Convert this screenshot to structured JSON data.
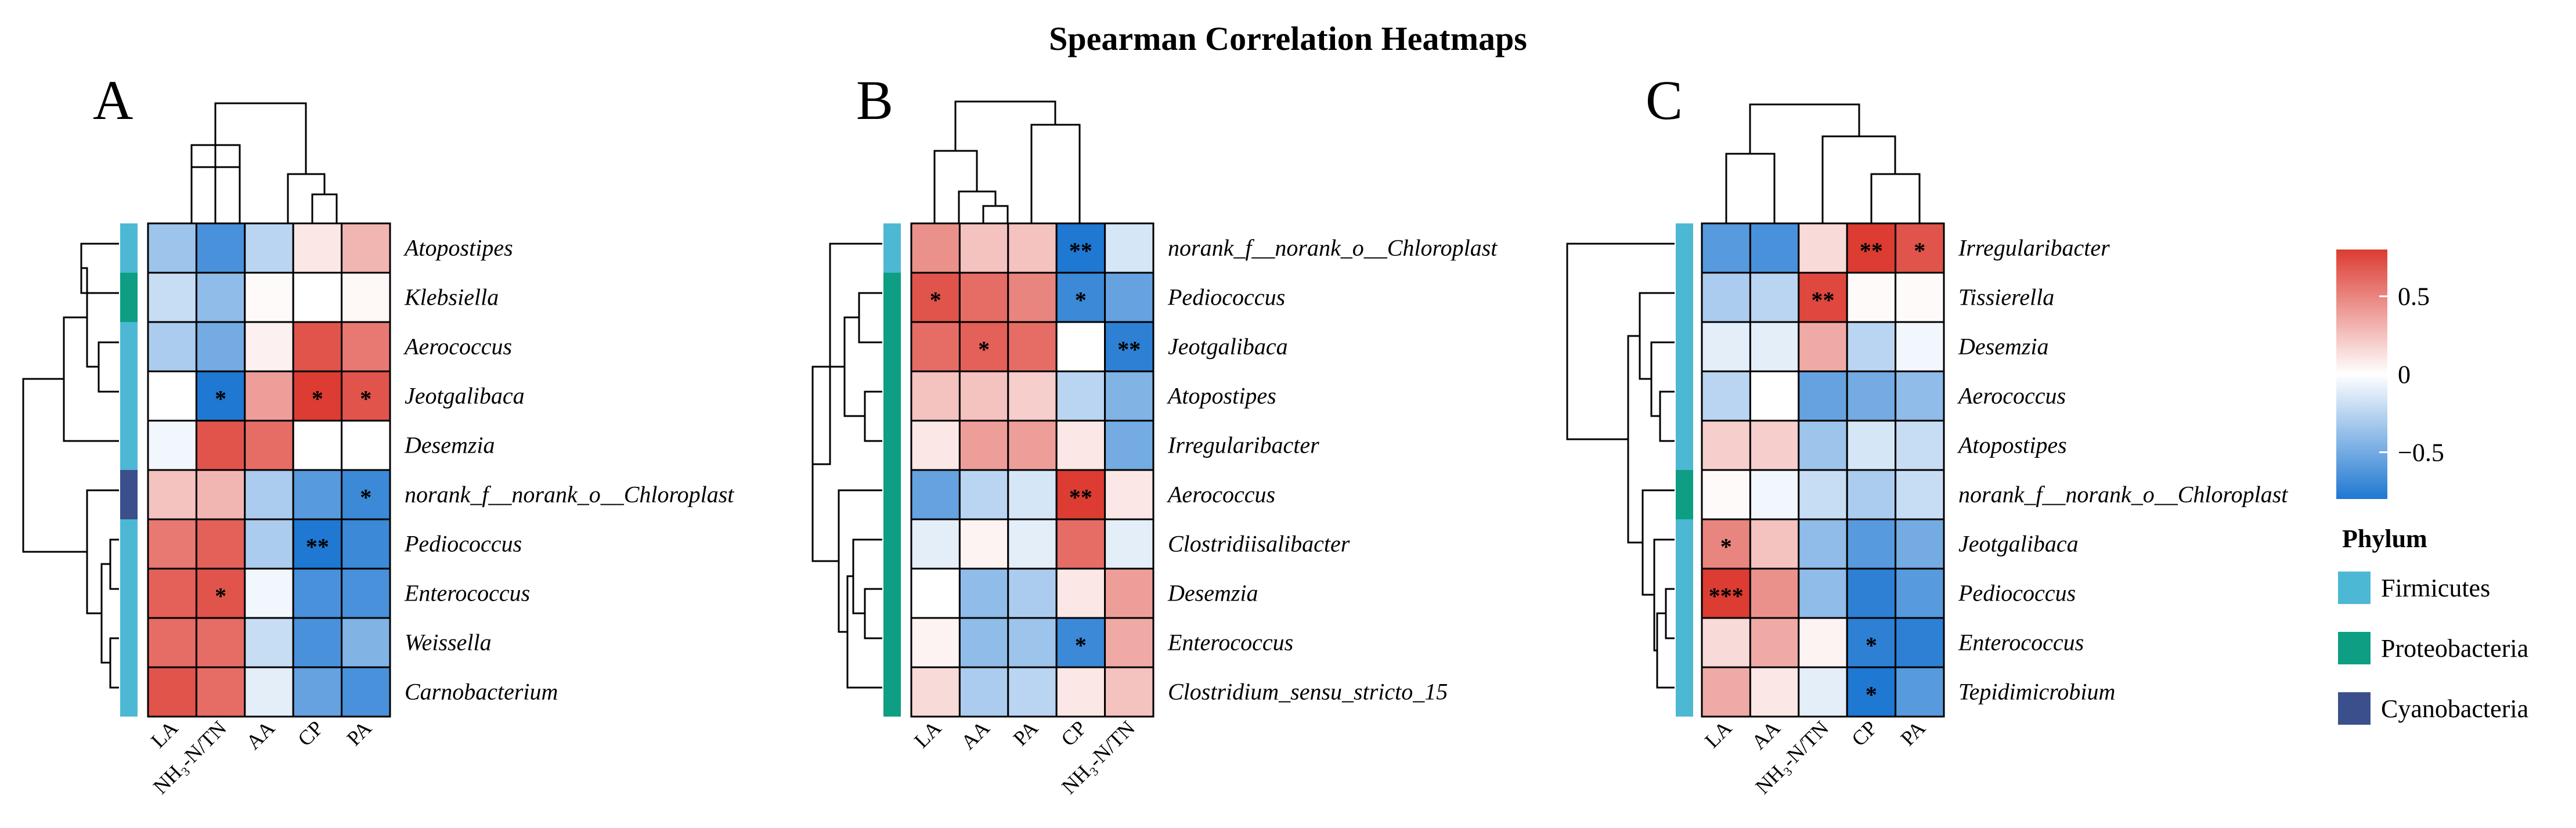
{
  "chart_data": {
    "type": "heatmap",
    "title": "Spearman Correlation Heatmaps",
    "color_scale": {
      "min": -0.8,
      "max": 0.8,
      "ticks": [
        0.5,
        0,
        -0.5
      ],
      "tick_labels": [
        "0.5",
        "0",
        "−0.5"
      ],
      "low_color": "#1f78d1",
      "mid_color": "#ffffff",
      "high_color": "#dc3c32"
    },
    "phylum_legend": {
      "title": "Phylum",
      "items": [
        {
          "name": "Firmicutes",
          "color": "#4db8d4"
        },
        {
          "name": "Proteobacteria",
          "color": "#0d9e83"
        },
        {
          "name": "Cyanobacteria",
          "color": "#3b4f8c"
        }
      ]
    },
    "panels": [
      {
        "label": "A",
        "columns": [
          "LA",
          "NH₃-N/TN",
          "AA",
          "CP",
          "PA"
        ],
        "rows": [
          {
            "name": "Atopostipes",
            "phylum": "Firmicutes",
            "values": [
              -0.35,
              -0.65,
              -0.25,
              0.1,
              0.3
            ],
            "sig": [
              "",
              "",
              "",
              "",
              ""
            ]
          },
          {
            "name": "Klebsiella",
            "phylum": "Proteobacteria",
            "values": [
              -0.2,
              -0.4,
              0.02,
              0.0,
              0.03
            ],
            "sig": [
              "",
              "",
              "",
              "",
              ""
            ]
          },
          {
            "name": "Aerococcus",
            "phylum": "Firmicutes",
            "values": [
              -0.3,
              -0.5,
              0.06,
              0.7,
              0.55
            ],
            "sig": [
              "",
              "",
              "",
              "",
              ""
            ]
          },
          {
            "name": "Jeotgalibaca",
            "phylum": "Firmicutes",
            "values": [
              0.0,
              -0.8,
              0.4,
              0.8,
              0.7
            ],
            "sig": [
              "",
              "*",
              "",
              "*",
              "*"
            ]
          },
          {
            "name": "Desemzia",
            "phylum": "Firmicutes",
            "values": [
              -0.05,
              0.7,
              0.6,
              0.0,
              0.0
            ],
            "sig": [
              "",
              "",
              "",
              "",
              ""
            ]
          },
          {
            "name": "norank_f__norank_o__Chloroplast",
            "phylum": "Cyanobacteria",
            "values": [
              0.25,
              0.3,
              -0.3,
              -0.6,
              -0.7
            ],
            "sig": [
              "",
              "",
              "",
              "",
              "*"
            ]
          },
          {
            "name": "Pediococcus",
            "phylum": "Firmicutes",
            "values": [
              0.55,
              0.65,
              -0.3,
              -0.85,
              -0.7
            ],
            "sig": [
              "",
              "",
              "",
              "**",
              ""
            ]
          },
          {
            "name": "Enterococcus",
            "phylum": "Firmicutes",
            "values": [
              0.65,
              0.7,
              -0.05,
              -0.65,
              -0.65
            ],
            "sig": [
              "",
              "*",
              "",
              "",
              ""
            ]
          },
          {
            "name": "Weissella",
            "phylum": "Firmicutes",
            "values": [
              0.6,
              0.6,
              -0.2,
              -0.65,
              -0.45
            ],
            "sig": [
              "",
              "",
              "",
              "",
              ""
            ]
          },
          {
            "name": "Carnobacterium",
            "phylum": "Firmicutes",
            "values": [
              0.7,
              0.6,
              -0.1,
              -0.55,
              -0.65
            ],
            "sig": [
              "",
              "",
              "",
              "",
              ""
            ]
          }
        ]
      },
      {
        "label": "B",
        "columns": [
          "LA",
          "AA",
          "PA",
          "CP",
          "NH₃-N/TN"
        ],
        "rows": [
          {
            "name": "norank_f__norank_o__Chloroplast",
            "phylum": "Firmicutes",
            "values": [
              0.45,
              0.25,
              0.25,
              -0.8,
              -0.15
            ],
            "sig": [
              "",
              "",
              "",
              "**",
              ""
            ]
          },
          {
            "name": "Pediococcus",
            "phylum": "Proteobacteria",
            "values": [
              0.7,
              0.6,
              0.5,
              -0.7,
              -0.55
            ],
            "sig": [
              "*",
              "",
              "",
              "*",
              ""
            ]
          },
          {
            "name": "Jeotgalibaca",
            "phylum": "Proteobacteria",
            "values": [
              0.6,
              0.65,
              0.6,
              0.0,
              -0.75
            ],
            "sig": [
              "",
              "*",
              "",
              "",
              "**"
            ]
          },
          {
            "name": "Atopostipes",
            "phylum": "Proteobacteria",
            "values": [
              0.25,
              0.25,
              0.2,
              -0.25,
              -0.45
            ],
            "sig": [
              "",
              "",
              "",
              "",
              ""
            ]
          },
          {
            "name": "Irregularibacter",
            "phylum": "Proteobacteria",
            "values": [
              0.1,
              0.4,
              0.4,
              0.1,
              -0.5
            ],
            "sig": [
              "",
              "",
              "",
              "",
              ""
            ]
          },
          {
            "name": "Aerococcus",
            "phylum": "Proteobacteria",
            "values": [
              -0.55,
              -0.25,
              -0.15,
              0.8,
              0.1
            ],
            "sig": [
              "",
              "",
              "",
              "**",
              ""
            ]
          },
          {
            "name": "Clostridiisalibacter",
            "phylum": "Proteobacteria",
            "values": [
              -0.1,
              0.05,
              -0.1,
              0.6,
              -0.1
            ],
            "sig": [
              "",
              "",
              "",
              "",
              ""
            ]
          },
          {
            "name": "Desemzia",
            "phylum": "Proteobacteria",
            "values": [
              0.0,
              -0.4,
              -0.3,
              0.1,
              0.4
            ],
            "sig": [
              "",
              "",
              "",
              "",
              ""
            ]
          },
          {
            "name": "Enterococcus",
            "phylum": "Proteobacteria",
            "values": [
              0.05,
              -0.4,
              -0.35,
              -0.7,
              0.35
            ],
            "sig": [
              "",
              "",
              "",
              "*",
              ""
            ]
          },
          {
            "name": "Clostridium_sensu_stricto_15",
            "phylum": "Proteobacteria",
            "values": [
              0.15,
              -0.3,
              -0.25,
              0.1,
              0.25
            ],
            "sig": [
              "",
              "",
              "",
              "",
              ""
            ]
          }
        ]
      },
      {
        "label": "C",
        "columns": [
          "LA",
          "AA",
          "NH₃-N/TN",
          "CP",
          "PA"
        ],
        "rows": [
          {
            "name": "Irregularibacter",
            "phylum": "Firmicutes",
            "values": [
              -0.6,
              -0.65,
              0.15,
              0.8,
              0.7
            ],
            "sig": [
              "",
              "",
              "",
              "**",
              "*"
            ]
          },
          {
            "name": "Tissierella",
            "phylum": "Firmicutes",
            "values": [
              -0.3,
              -0.25,
              0.75,
              0.02,
              0.02
            ],
            "sig": [
              "",
              "",
              "**",
              "",
              ""
            ]
          },
          {
            "name": "Desemzia",
            "phylum": "Firmicutes",
            "values": [
              -0.1,
              -0.1,
              0.35,
              -0.25,
              -0.05
            ],
            "sig": [
              "",
              "",
              "",
              "",
              ""
            ]
          },
          {
            "name": "Aerococcus",
            "phylum": "Firmicutes",
            "values": [
              -0.25,
              0.0,
              -0.55,
              -0.5,
              -0.4
            ],
            "sig": [
              "",
              "",
              "",
              "",
              ""
            ]
          },
          {
            "name": "Atopostipes",
            "phylum": "Firmicutes",
            "values": [
              0.2,
              0.2,
              -0.35,
              -0.15,
              -0.2
            ],
            "sig": [
              "",
              "",
              "",
              "",
              ""
            ]
          },
          {
            "name": "norank_f__norank_o__Chloroplast",
            "phylum": "Proteobacteria",
            "values": [
              0.02,
              -0.05,
              -0.2,
              -0.3,
              -0.2
            ],
            "sig": [
              "",
              "",
              "",
              "",
              ""
            ]
          },
          {
            "name": "Jeotgalibaca",
            "phylum": "Firmicutes",
            "values": [
              0.5,
              0.25,
              -0.4,
              -0.6,
              -0.5
            ],
            "sig": [
              "*",
              "",
              "",
              "",
              ""
            ]
          },
          {
            "name": "Pediococcus",
            "phylum": "Firmicutes",
            "values": [
              0.85,
              0.45,
              -0.4,
              -0.75,
              -0.6
            ],
            "sig": [
              "***",
              "",
              "",
              "",
              ""
            ]
          },
          {
            "name": "Enterococcus",
            "phylum": "Firmicutes",
            "values": [
              0.15,
              0.35,
              0.05,
              -0.75,
              -0.75
            ],
            "sig": [
              "",
              "",
              "",
              "*",
              ""
            ]
          },
          {
            "name": "Tepidimicrobium",
            "phylum": "Firmicutes",
            "values": [
              0.35,
              0.1,
              -0.1,
              -0.85,
              -0.6
            ],
            "sig": [
              "",
              "",
              "",
              "*",
              ""
            ]
          }
        ]
      }
    ]
  }
}
